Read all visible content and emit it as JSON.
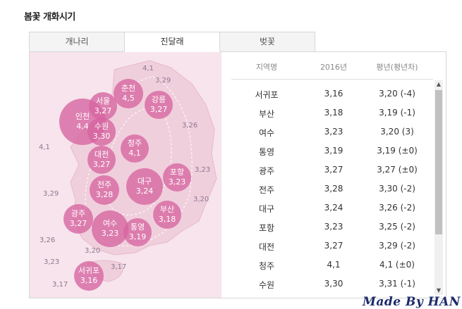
{
  "title": "봄꽃 개화시기",
  "tabs": [
    "개나리",
    "진달래",
    "벚꽃"
  ],
  "active_tab": "진달래",
  "colors": {
    "bubble": "#d664a0",
    "map_bg": "#f7e4ec",
    "land": "#f0cfdc"
  },
  "map": {
    "bubbles": [
      {
        "name": "인천",
        "value": "4,4"
      },
      {
        "name": "서울",
        "value": "3,27"
      },
      {
        "name": "춘천",
        "value": "4,5"
      },
      {
        "name": "강릉",
        "value": "3,27"
      },
      {
        "name": "수원",
        "value": "3,30"
      },
      {
        "name": "청주",
        "value": "4,1"
      },
      {
        "name": "대전",
        "value": "3,27"
      },
      {
        "name": "포항",
        "value": "3,23"
      },
      {
        "name": "대구",
        "value": "3,24"
      },
      {
        "name": "전주",
        "value": "3,28"
      },
      {
        "name": "부산",
        "value": "3,18"
      },
      {
        "name": "광주",
        "value": "3,27"
      },
      {
        "name": "여수",
        "value": "3,23"
      },
      {
        "name": "통영",
        "value": "3,19"
      },
      {
        "name": "서귀포",
        "value": "3,16"
      }
    ],
    "labels": [
      "4,1",
      "3,29",
      "3,26",
      "4,1",
      "3,23",
      "3,29",
      "3,20",
      "3,26",
      "3,20",
      "3,23",
      "3,17",
      "3,17"
    ]
  },
  "table": {
    "headers": [
      "지역명",
      "2016년",
      "평년(평년차)"
    ],
    "rows": [
      [
        "서귀포",
        "3,16",
        "3,20 (-4)"
      ],
      [
        "부산",
        "3,18",
        "3,19 (-1)"
      ],
      [
        "여수",
        "3,23",
        "3,20 (3)"
      ],
      [
        "통영",
        "3,19",
        "3,19 (±0)"
      ],
      [
        "광주",
        "3,27",
        "3,27 (±0)"
      ],
      [
        "전주",
        "3,28",
        "3,30 (-2)"
      ],
      [
        "대구",
        "3,24",
        "3,26 (-2)"
      ],
      [
        "포항",
        "3,23",
        "3,25 (-2)"
      ],
      [
        "대전",
        "3,27",
        "3,29 (-2)"
      ],
      [
        "청주",
        "4,1",
        "4,1 (±0)"
      ],
      [
        "수원",
        "3,30",
        "3,31 (-1)"
      ]
    ]
  },
  "scroll": {
    "up_icon": "▲",
    "down_icon": "▼"
  },
  "watermark": "Made By HAN"
}
